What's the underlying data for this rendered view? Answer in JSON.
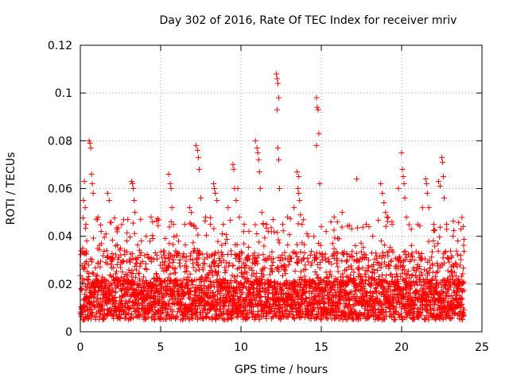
{
  "chart_data": {
    "type": "scatter",
    "title": "Day 302 of 2016, Rate Of TEC Index for receiver mriv",
    "xlabel": "GPS time / hours",
    "ylabel": "ROTI / TECUs",
    "xlim": [
      0,
      25
    ],
    "ylim": [
      0,
      0.12
    ],
    "xticks": [
      0,
      5,
      10,
      15,
      20,
      25
    ],
    "xtick_labels": [
      "0",
      "5",
      "10",
      "15",
      "20",
      "25"
    ],
    "yticks": [
      0,
      0.02,
      0.04,
      0.06,
      0.08,
      0.1,
      0.12
    ],
    "ytick_labels": [
      "0",
      "0.02",
      "0.04",
      "0.06",
      "0.08",
      "0.1",
      "0.12"
    ],
    "grid": true,
    "marker": "+",
    "color": "#ff0000",
    "series": [
      {
        "name": "ROTI",
        "x_range": [
          0,
          23.9
        ],
        "baseline_band": [
          0.005,
          0.022
        ],
        "points": [
          [
            0.15,
            0.035
          ],
          [
            0.2,
            0.055
          ],
          [
            0.25,
            0.063
          ],
          [
            0.3,
            0.052
          ],
          [
            0.35,
            0.045
          ],
          [
            0.4,
            0.038
          ],
          [
            0.55,
            0.08
          ],
          [
            0.6,
            0.079
          ],
          [
            0.65,
            0.077
          ],
          [
            0.7,
            0.066
          ],
          [
            0.75,
            0.062
          ],
          [
            0.8,
            0.058
          ],
          [
            1.1,
            0.048
          ],
          [
            1.3,
            0.042
          ],
          [
            1.6,
            0.041
          ],
          [
            1.7,
            0.058
          ],
          [
            1.8,
            0.055
          ],
          [
            2.2,
            0.036
          ],
          [
            2.5,
            0.035
          ],
          [
            2.9,
            0.038
          ],
          [
            3.2,
            0.063
          ],
          [
            3.25,
            0.062
          ],
          [
            3.3,
            0.06
          ],
          [
            3.35,
            0.055
          ],
          [
            3.4,
            0.05
          ],
          [
            3.8,
            0.038
          ],
          [
            4.1,
            0.04
          ],
          [
            4.4,
            0.048
          ],
          [
            4.5,
            0.046
          ],
          [
            5.5,
            0.066
          ],
          [
            5.6,
            0.062
          ],
          [
            5.65,
            0.06
          ],
          [
            5.7,
            0.052
          ],
          [
            5.8,
            0.045
          ],
          [
            6.5,
            0.045
          ],
          [
            6.8,
            0.052
          ],
          [
            6.9,
            0.05
          ],
          [
            7.2,
            0.078
          ],
          [
            7.3,
            0.076
          ],
          [
            7.35,
            0.073
          ],
          [
            7.4,
            0.068
          ],
          [
            7.5,
            0.056
          ],
          [
            7.8,
            0.048
          ],
          [
            8.1,
            0.045
          ],
          [
            8.3,
            0.062
          ],
          [
            8.35,
            0.06
          ],
          [
            8.4,
            0.058
          ],
          [
            8.5,
            0.055
          ],
          [
            8.9,
            0.045
          ],
          [
            9.2,
            0.052
          ],
          [
            9.5,
            0.07
          ],
          [
            9.55,
            0.068
          ],
          [
            9.6,
            0.06
          ],
          [
            9.7,
            0.055
          ],
          [
            9.8,
            0.06
          ],
          [
            9.9,
            0.048
          ],
          [
            10.2,
            0.045
          ],
          [
            10.5,
            0.042
          ],
          [
            10.9,
            0.08
          ],
          [
            11.0,
            0.077
          ],
          [
            11.05,
            0.075
          ],
          [
            11.1,
            0.072
          ],
          [
            11.15,
            0.067
          ],
          [
            11.2,
            0.06
          ],
          [
            11.3,
            0.05
          ],
          [
            11.4,
            0.045
          ],
          [
            11.6,
            0.045
          ],
          [
            11.7,
            0.042
          ],
          [
            12.0,
            0.047
          ],
          [
            12.2,
            0.108
          ],
          [
            12.25,
            0.106
          ],
          [
            12.3,
            0.104
          ],
          [
            12.35,
            0.098
          ],
          [
            12.25,
            0.093
          ],
          [
            12.3,
            0.077
          ],
          [
            12.35,
            0.072
          ],
          [
            12.4,
            0.06
          ],
          [
            12.6,
            0.045
          ],
          [
            12.9,
            0.048
          ],
          [
            13.3,
            0.052
          ],
          [
            13.5,
            0.067
          ],
          [
            13.6,
            0.065
          ],
          [
            13.55,
            0.06
          ],
          [
            13.6,
            0.058
          ],
          [
            13.65,
            0.055
          ],
          [
            13.7,
            0.049
          ],
          [
            13.8,
            0.045
          ],
          [
            14.2,
            0.04
          ],
          [
            14.7,
            0.098
          ],
          [
            14.75,
            0.094
          ],
          [
            14.8,
            0.093
          ],
          [
            14.85,
            0.083
          ],
          [
            14.7,
            0.078
          ],
          [
            14.9,
            0.062
          ],
          [
            15.0,
            0.044
          ],
          [
            15.3,
            0.042
          ],
          [
            15.6,
            0.046
          ],
          [
            15.8,
            0.048
          ],
          [
            16.0,
            0.046
          ],
          [
            16.3,
            0.05
          ],
          [
            17.2,
            0.064
          ],
          [
            17.8,
            0.045
          ],
          [
            18.2,
            0.04
          ],
          [
            18.7,
            0.062
          ],
          [
            18.8,
            0.058
          ],
          [
            18.9,
            0.054
          ],
          [
            19.0,
            0.05
          ],
          [
            19.1,
            0.048
          ],
          [
            19.4,
            0.046
          ],
          [
            19.8,
            0.06
          ],
          [
            20.0,
            0.075
          ],
          [
            20.05,
            0.068
          ],
          [
            20.1,
            0.065
          ],
          [
            20.15,
            0.062
          ],
          [
            20.2,
            0.056
          ],
          [
            20.3,
            0.048
          ],
          [
            20.6,
            0.043
          ],
          [
            21.0,
            0.045
          ],
          [
            21.3,
            0.052
          ],
          [
            21.5,
            0.064
          ],
          [
            21.55,
            0.062
          ],
          [
            21.6,
            0.058
          ],
          [
            21.7,
            0.052
          ],
          [
            22.0,
            0.045
          ],
          [
            22.3,
            0.063
          ],
          [
            22.4,
            0.061
          ],
          [
            22.5,
            0.073
          ],
          [
            22.55,
            0.071
          ],
          [
            22.6,
            0.065
          ],
          [
            22.65,
            0.056
          ],
          [
            22.8,
            0.045
          ],
          [
            23.2,
            0.04
          ],
          [
            23.5,
            0.038
          ],
          [
            23.7,
            0.043
          ]
        ]
      }
    ]
  }
}
